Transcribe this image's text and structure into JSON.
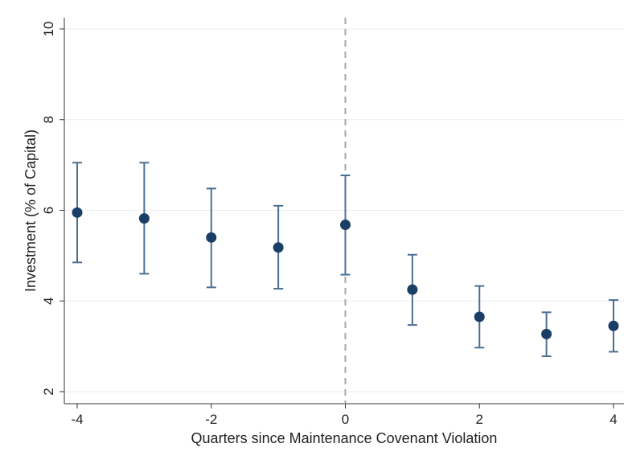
{
  "chart_data": {
    "type": "scatter",
    "title": "",
    "xlabel": "Quarters since Maintenance Covenant Violation",
    "ylabel": "Investment (% of Capital)",
    "xlim": [
      -4,
      4
    ],
    "ylim": [
      2,
      10
    ],
    "x_ticks": [
      -4,
      -2,
      0,
      2,
      4
    ],
    "x_tick_labels": [
      "-4",
      "-2",
      "0",
      "2",
      "4"
    ],
    "y_ticks": [
      2,
      4,
      6,
      8,
      10
    ],
    "y_tick_labels": [
      "2",
      "4",
      "6",
      "8",
      "10"
    ],
    "grid": "horizontal",
    "reference_line": {
      "x": 0,
      "style": "dashed",
      "color": "#a6a6a6"
    },
    "series": [
      {
        "marker_color": "#1a3e66",
        "errorbar_color": "#4a6f92",
        "points": [
          {
            "x": -4,
            "y": 5.95,
            "lo": 4.85,
            "hi": 7.05
          },
          {
            "x": -3,
            "y": 5.82,
            "lo": 4.6,
            "hi": 7.05
          },
          {
            "x": -2,
            "y": 5.4,
            "lo": 4.3,
            "hi": 6.48
          },
          {
            "x": -1,
            "y": 5.18,
            "lo": 4.27,
            "hi": 6.1
          },
          {
            "x": 0,
            "y": 5.68,
            "lo": 4.58,
            "hi": 6.77
          },
          {
            "x": 1,
            "y": 4.25,
            "lo": 3.47,
            "hi": 5.02
          },
          {
            "x": 2,
            "y": 3.65,
            "lo": 2.97,
            "hi": 4.33
          },
          {
            "x": 3,
            "y": 3.27,
            "lo": 2.78,
            "hi": 3.75
          },
          {
            "x": 4,
            "y": 3.45,
            "lo": 2.88,
            "hi": 4.02
          }
        ]
      }
    ]
  }
}
